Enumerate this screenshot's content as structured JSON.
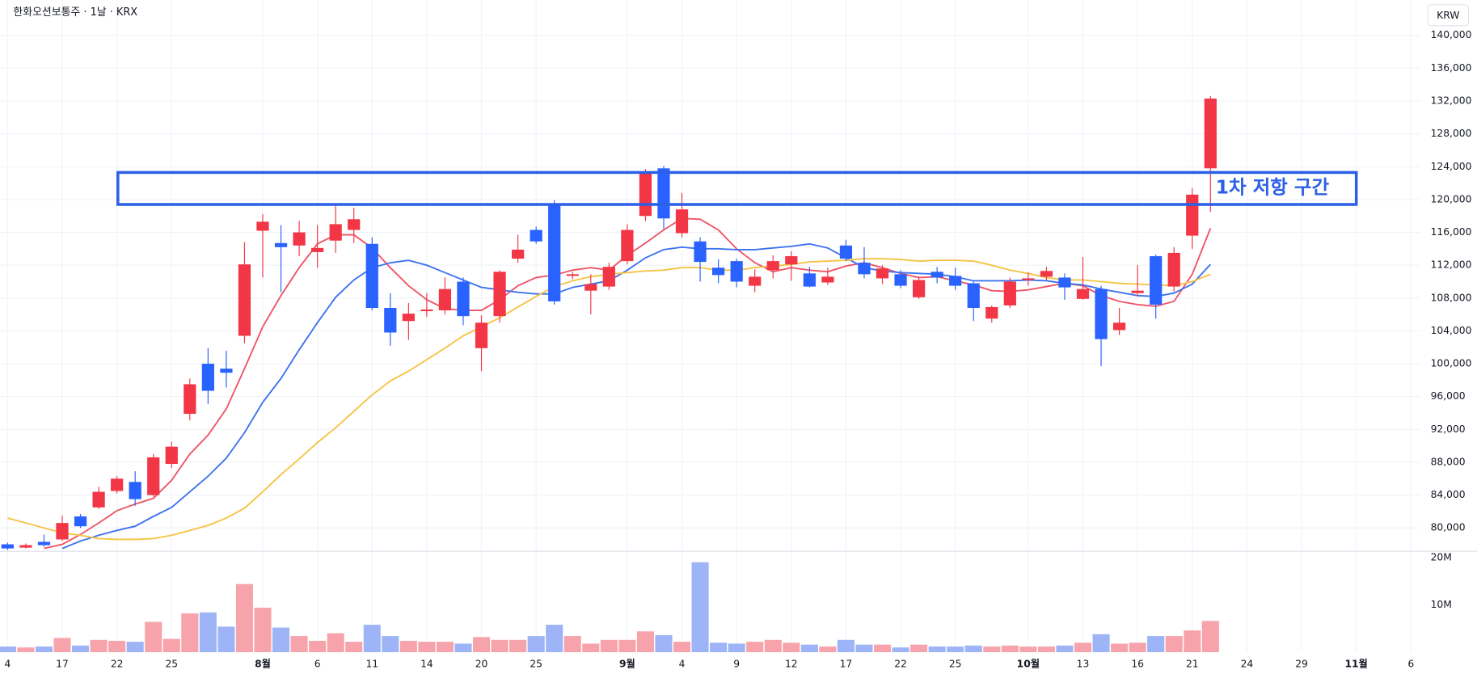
{
  "chart_data": {
    "type": "candlestick",
    "title": "한화오션보통주 · 1날 · KRX",
    "currency": "KRW",
    "categories": [
      "4",
      null,
      null,
      "17",
      null,
      null,
      "22",
      null,
      null,
      "25",
      null,
      null,
      null,
      null,
      "8월",
      null,
      null,
      "6",
      null,
      null,
      "11",
      null,
      null,
      "14",
      null,
      null,
      "20",
      null,
      null,
      "25",
      null,
      null,
      null,
      null,
      "9월",
      null,
      null,
      "4",
      null,
      null,
      "9",
      null,
      null,
      "12",
      null,
      null,
      "17",
      null,
      null,
      "22",
      null,
      null,
      "25",
      null,
      null,
      null,
      "10월",
      null,
      null,
      "13",
      null,
      null,
      "16",
      null,
      null,
      "21",
      null,
      null,
      "24",
      null,
      null,
      "29",
      null,
      null,
      "11월",
      null,
      null,
      "6"
    ],
    "open": [
      78000,
      77600,
      78300,
      78600,
      81400,
      82500,
      84500,
      85600,
      84000,
      87800,
      93900,
      100000,
      99400,
      103400,
      116200,
      114700,
      114400,
      113600,
      115000,
      116300,
      114600,
      106800,
      105200,
      106400,
      106500,
      110000,
      101900,
      105800,
      112800,
      116300,
      119500,
      110700,
      108900,
      109400,
      112500,
      118000,
      123800,
      115900,
      114900,
      111700,
      112500,
      109500,
      111400,
      112100,
      111000,
      109900,
      114400,
      112300,
      110400,
      110900,
      108100,
      111200,
      110700,
      109800,
      105500,
      107100,
      110200,
      110600,
      110500,
      107900,
      109100,
      104100,
      108600,
      113100,
      109400,
      115600,
      123800,
      null,
      null,
      null,
      null,
      null,
      null,
      null,
      null,
      null,
      null,
      null
    ],
    "high": [
      78200,
      78100,
      79200,
      81500,
      81700,
      85000,
      86300,
      86900,
      89000,
      90500,
      98200,
      101900,
      101600,
      114800,
      118200,
      116900,
      117400,
      116900,
      119500,
      119000,
      115400,
      108600,
      107400,
      108600,
      110500,
      110500,
      105900,
      111400,
      115700,
      116700,
      119900,
      111200,
      110900,
      112300,
      117000,
      123700,
      124100,
      120800,
      115400,
      112700,
      112800,
      111500,
      113200,
      113700,
      111800,
      111700,
      115100,
      114200,
      112000,
      111400,
      110600,
      111800,
      111700,
      110000,
      107100,
      110500,
      111100,
      111800,
      111000,
      113000,
      109500,
      106800,
      112000,
      113300,
      114200,
      121400,
      132600,
      null,
      null,
      null,
      null,
      null,
      null,
      null,
      null,
      null,
      null,
      null
    ],
    "low": [
      77300,
      77500,
      77700,
      78400,
      80000,
      82300,
      84200,
      82700,
      83800,
      87300,
      93100,
      95100,
      97100,
      102500,
      110500,
      108700,
      113100,
      111700,
      113500,
      114700,
      106500,
      102200,
      102900,
      105700,
      106000,
      104700,
      99100,
      105000,
      112300,
      114600,
      107200,
      110300,
      106000,
      109000,
      112100,
      117400,
      116400,
      115400,
      110000,
      109800,
      109300,
      108700,
      110400,
      110100,
      109300,
      109600,
      112500,
      110400,
      109700,
      109200,
      107900,
      109800,
      109000,
      105200,
      105000,
      106800,
      109500,
      110200,
      107800,
      107800,
      99700,
      103500,
      108200,
      105500,
      108800,
      114000,
      118500,
      null,
      null,
      null,
      null,
      null,
      null,
      null,
      null,
      null,
      null,
      null
    ],
    "close": [
      77500,
      77900,
      77900,
      80600,
      80200,
      84400,
      86000,
      83500,
      88600,
      89900,
      97500,
      96700,
      98900,
      112100,
      117300,
      114200,
      116000,
      114100,
      117000,
      117600,
      106800,
      103800,
      106100,
      106600,
      109100,
      105800,
      105000,
      111200,
      113900,
      114900,
      107600,
      110900,
      109700,
      111800,
      116300,
      123300,
      117700,
      118800,
      112400,
      110800,
      110000,
      110600,
      112500,
      113100,
      109400,
      110600,
      112800,
      110900,
      111600,
      109500,
      110200,
      110500,
      109500,
      106800,
      106900,
      110000,
      110400,
      111300,
      109300,
      109100,
      103000,
      105000,
      108900,
      107200,
      113500,
      120600,
      132300,
      null,
      null,
      null,
      null,
      null,
      null,
      null,
      null,
      null,
      null,
      null
    ],
    "up_color": "#f23645",
    "down_color": "#2962ff",
    "series": [
      {
        "color": "#ef5466",
        "values": [
          null,
          null,
          77500,
          78000,
          79200,
          80600,
          82100,
          82900,
          83600,
          85800,
          89000,
          91300,
          94500,
          99400,
          104500,
          108300,
          111700,
          114600,
          115700,
          115700,
          114100,
          111700,
          109500,
          107800,
          106700,
          106500,
          106500,
          107800,
          109500,
          110500,
          110800,
          111400,
          111700,
          111400,
          113200,
          114700,
          116300,
          117700,
          117600,
          116300,
          114000,
          112300,
          111200,
          111700,
          111400,
          111200,
          111900,
          112300,
          111700,
          111000,
          110500,
          110600,
          110100,
          109600,
          108900,
          108800,
          109000,
          109400,
          109800,
          109500,
          108300,
          107600,
          107200,
          107000,
          107600,
          110900,
          116500,
          null,
          null,
          null,
          null,
          null,
          null,
          null,
          null,
          null,
          null,
          null
        ]
      },
      {
        "color": "#3d72ee",
        "values": [
          null,
          null,
          null,
          77500,
          78400,
          79100,
          79700,
          80200,
          81400,
          82500,
          84400,
          86300,
          88500,
          91600,
          95300,
          98200,
          101700,
          105000,
          108100,
          110200,
          111700,
          112300,
          112600,
          112000,
          111100,
          110200,
          109300,
          109000,
          108700,
          108500,
          108500,
          109300,
          109700,
          110100,
          111400,
          112900,
          113900,
          114200,
          114000,
          114000,
          113900,
          113900,
          114100,
          114300,
          114600,
          114100,
          112900,
          111700,
          111300,
          111100,
          111000,
          110900,
          110600,
          110100,
          110100,
          110100,
          110200,
          110100,
          109800,
          109600,
          109100,
          108700,
          108300,
          108200,
          108600,
          109700,
          112100,
          null,
          null,
          null,
          null,
          null,
          null,
          null,
          null,
          null,
          null,
          null
        ]
      },
      {
        "color": "#f6c343",
        "values": [
          81200,
          80600,
          80000,
          79400,
          79100,
          78700,
          78600,
          78600,
          78700,
          79100,
          79700,
          80300,
          81200,
          82400,
          84400,
          86500,
          88400,
          90400,
          92200,
          94200,
          96200,
          97900,
          99100,
          100500,
          101900,
          103400,
          104500,
          105600,
          106900,
          108200,
          109400,
          110100,
          110600,
          110900,
          111100,
          111300,
          111400,
          111700,
          111700,
          111400,
          111400,
          111700,
          111900,
          112100,
          112400,
          112500,
          112600,
          112800,
          112800,
          112700,
          112500,
          112600,
          112600,
          112500,
          112000,
          111400,
          111000,
          110500,
          110200,
          110200,
          110000,
          109800,
          109700,
          109600,
          109500,
          110000,
          110900,
          null,
          null,
          null,
          null,
          null,
          null,
          null,
          null,
          null,
          null,
          null
        ]
      }
    ],
    "ylim": [
      77200,
      144300
    ],
    "yticks": [
      {
        "value": 80000,
        "label": "80,000"
      },
      {
        "value": 84000,
        "label": "84,000"
      },
      {
        "value": 88000,
        "label": "88,000"
      },
      {
        "value": 92000,
        "label": "92,000"
      },
      {
        "value": 96000,
        "label": "96,000"
      },
      {
        "value": 100000,
        "label": "100,000"
      },
      {
        "value": 104000,
        "label": "104,000"
      },
      {
        "value": 108000,
        "label": "108,000"
      },
      {
        "value": 112000,
        "label": "112,000"
      },
      {
        "value": 116000,
        "label": "116,000"
      },
      {
        "value": 120000,
        "label": "120,000"
      },
      {
        "value": 124000,
        "label": "124,000"
      },
      {
        "value": 128000,
        "label": "128,000"
      },
      {
        "value": 132000,
        "label": "132,000"
      },
      {
        "value": 136000,
        "label": "136,000"
      },
      {
        "value": 140000,
        "label": "140,000"
      }
    ],
    "grid": true,
    "volume": {
      "values": [
        1200000,
        1000000,
        1200000,
        3000000,
        1400000,
        2600000,
        2400000,
        2200000,
        6400000,
        2800000,
        8200000,
        8400000,
        5400000,
        14400000,
        9400000,
        5200000,
        3400000,
        2400000,
        4000000,
        2200000,
        5800000,
        3400000,
        2400000,
        2200000,
        2200000,
        1800000,
        3200000,
        2600000,
        2600000,
        3400000,
        5800000,
        3400000,
        1800000,
        2600000,
        2600000,
        4400000,
        3600000,
        2200000,
        19000000,
        2000000,
        1800000,
        2200000,
        2600000,
        2000000,
        1600000,
        1200000,
        2600000,
        1600000,
        1600000,
        1000000,
        1600000,
        1200000,
        1200000,
        1400000,
        1200000,
        1400000,
        1200000,
        1200000,
        1400000,
        2000000,
        3800000,
        1800000,
        2000000,
        3400000,
        3400000,
        4600000,
        6600000,
        null,
        null,
        null,
        null,
        null,
        null,
        null,
        null,
        null,
        null,
        null
      ],
      "ylim": [
        0,
        21000000
      ],
      "yticks": [
        {
          "value": 10000000,
          "label": "10M"
        },
        {
          "value": 20000000,
          "label": "20M"
        }
      ],
      "up_color": "#f7a3ab",
      "down_color": "#9db4f6"
    },
    "annotation": {
      "text": "1차 저항 구간",
      "low": 119400,
      "high": 123300,
      "color": "#2b5fe6"
    }
  }
}
